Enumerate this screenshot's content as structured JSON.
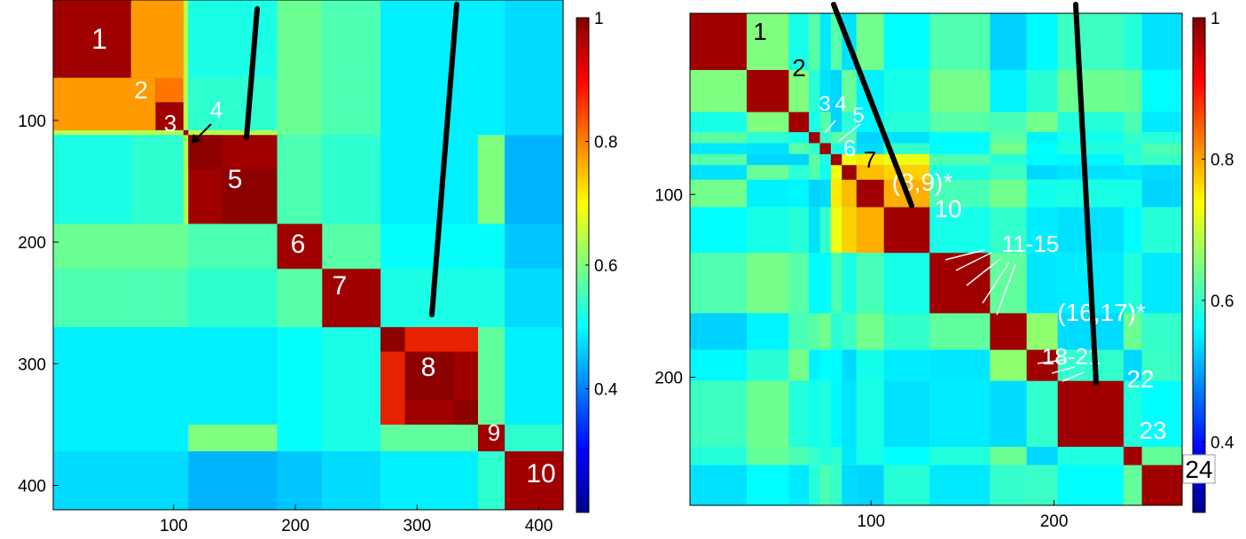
{
  "chart_data": [
    {
      "type": "heatmap",
      "title": "",
      "xlabel": "",
      "ylabel": "",
      "n": 420,
      "xlim": [
        1,
        420
      ],
      "ylim": [
        1,
        420
      ],
      "xticks": [
        100,
        200,
        300,
        400
      ],
      "yticks": [
        100,
        200,
        300,
        400
      ],
      "clim": [
        0.2,
        1
      ],
      "colorbar_ticks": [
        1,
        0.8,
        0.6,
        0.4
      ],
      "colorbar_tick_labels": [
        "1",
        "0.8",
        "0.6",
        "0.4"
      ],
      "blocks": [
        {
          "label": "1",
          "start": 1,
          "end": 65
        },
        {
          "label": "2",
          "start": 65,
          "end": 85
        },
        {
          "label": "3",
          "start": 85,
          "end": 108
        },
        {
          "label": "4",
          "start": 108,
          "end": 112
        },
        {
          "label": "5",
          "start": 112,
          "end": 185
        },
        {
          "label": "6",
          "start": 185,
          "end": 222
        },
        {
          "label": "7",
          "start": 222,
          "end": 270
        },
        {
          "label": "8",
          "start": 270,
          "end": 350
        },
        {
          "label": "9",
          "start": 350,
          "end": 372
        },
        {
          "label": "10",
          "start": 372,
          "end": 420
        }
      ],
      "annotations": [
        "4"
      ]
    },
    {
      "type": "heatmap",
      "title": "",
      "xlabel": "",
      "ylabel": "",
      "n": 270,
      "xlim": [
        1,
        270
      ],
      "ylim": [
        1,
        270
      ],
      "xticks": [
        100,
        200
      ],
      "yticks": [
        100,
        200
      ],
      "clim": [
        0.3,
        1
      ],
      "colorbar_ticks": [
        1,
        0.8,
        0.6,
        0.4
      ],
      "colorbar_tick_labels": [
        "1",
        "0.8",
        "0.6",
        "0.4"
      ],
      "blocks": [
        {
          "label": "1",
          "start": 1,
          "end": 32
        },
        {
          "label": "2",
          "start": 32,
          "end": 55
        },
        {
          "label": "3",
          "start": 55,
          "end": 66
        },
        {
          "label": "4",
          "start": 66,
          "end": 72
        },
        {
          "label": "5",
          "start": 72,
          "end": 78
        },
        {
          "label": "6",
          "start": 78,
          "end": 84
        },
        {
          "label": "7",
          "start": 84,
          "end": 92
        },
        {
          "label": "(8,9)*",
          "start": 92,
          "end": 107
        },
        {
          "label": "10",
          "start": 107,
          "end": 132
        },
        {
          "label": "11-15",
          "start": 132,
          "end": 165
        },
        {
          "label": "(16,17)*",
          "start": 165,
          "end": 185
        },
        {
          "label": "18-21",
          "start": 185,
          "end": 202
        },
        {
          "label": "22",
          "start": 202,
          "end": 238
        },
        {
          "label": "23",
          "start": 238,
          "end": 248
        },
        {
          "label": "24",
          "start": 248,
          "end": 270
        }
      ],
      "annotations": [
        "3",
        "4",
        "5",
        "(8,9)*",
        "11-15",
        "(16,17)*",
        "18-21",
        "24"
      ]
    }
  ]
}
